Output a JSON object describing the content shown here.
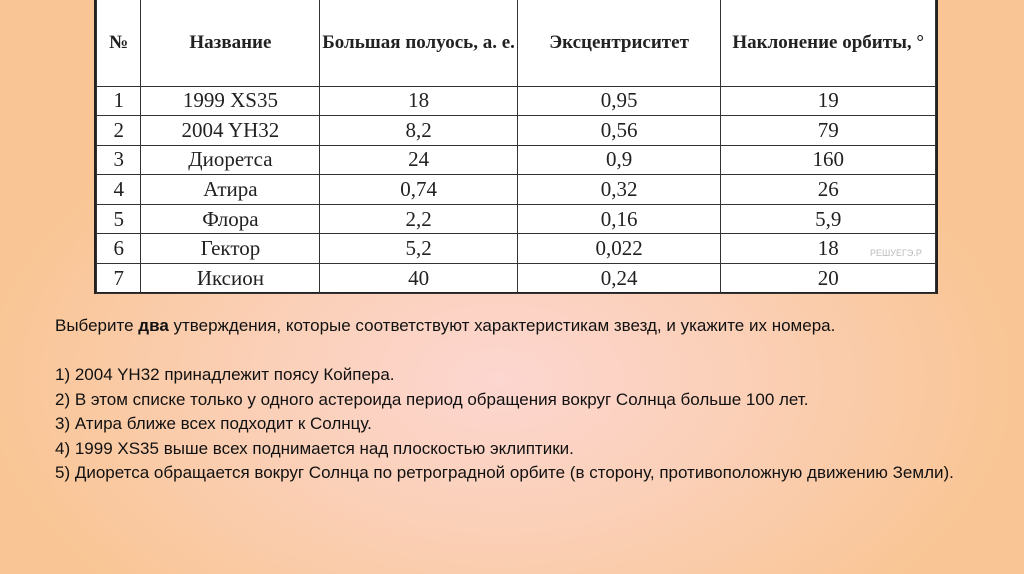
{
  "table": {
    "headers": [
      "№",
      "Название",
      "Большая полуось, а. е.",
      "Эксцентриситет",
      "Наклонение орбиты, °"
    ],
    "rows": [
      [
        "1",
        "1999 XS35",
        "18",
        "0,95",
        "19"
      ],
      [
        "2",
        "2004 YH32",
        "8,2",
        "0,56",
        "79"
      ],
      [
        "3",
        "Диоретса",
        "24",
        "0,9",
        "160"
      ],
      [
        "4",
        "Атира",
        "0,74",
        "0,32",
        "26"
      ],
      [
        "5",
        "Флора",
        "2,2",
        "0,16",
        "5,9"
      ],
      [
        "6",
        "Гектор",
        "5,2",
        "0,022",
        "18"
      ],
      [
        "7",
        "Иксион",
        "40",
        "0,24",
        "20"
      ]
    ],
    "watermark": "РЕШУЕГЭ.Р"
  },
  "question": {
    "pre": "Выберите ",
    "bold": "два",
    "post": " утверждения, которые соответствуют характеристикам звезд, и укажите их номера."
  },
  "options": [
    "1) 2004 YH32 принадлежит поясу Койпера.",
    "2) В этом списке только у одного астероида период обращения вокруг Солнца больше 100 лет.",
    "3) Атира ближе всех подходит к Солнцу.",
    "4) 1999 XS35 выше всех поднимается над плоскостью эклиптики.",
    "5) Диоретса обращается вокруг Солнца по ретроградной орбите (в сторону, противоположную движению Земли)."
  ]
}
